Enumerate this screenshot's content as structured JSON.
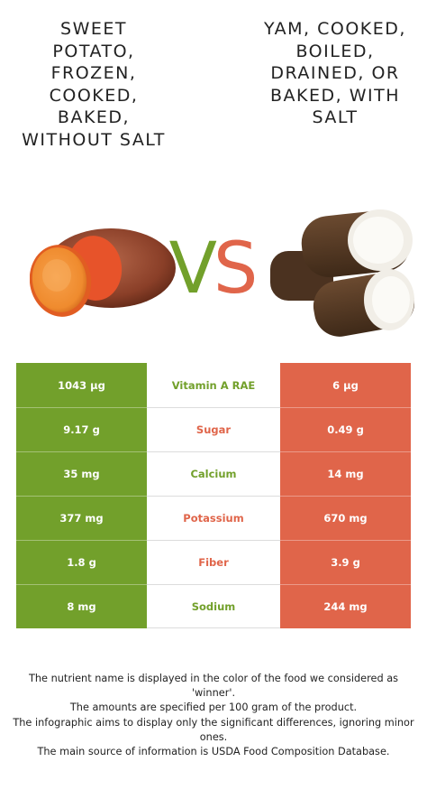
{
  "left_food": {
    "title": "SWEET POTATO, FROZEN, COOKED, BAKED, WITHOUT SALT",
    "image_icon": "sweet-potato-image",
    "color": "#72a02b"
  },
  "right_food": {
    "title": "YAM, COOKED, BOILED, DRAINED, OR BAKED, WITH SALT",
    "image_icon": "yam-image",
    "color": "#e0654a"
  },
  "vs": {
    "v": "V",
    "s": "S"
  },
  "rows": [
    {
      "left": "1043 µg",
      "nutrient": "Vitamin A RAE",
      "right": "6 µg",
      "winner": "left"
    },
    {
      "left": "9.17 g",
      "nutrient": "Sugar",
      "right": "0.49 g",
      "winner": "right"
    },
    {
      "left": "35 mg",
      "nutrient": "Calcium",
      "right": "14 mg",
      "winner": "left"
    },
    {
      "left": "377 mg",
      "nutrient": "Potassium",
      "right": "670 mg",
      "winner": "right"
    },
    {
      "left": "1.8 g",
      "nutrient": "Fiber",
      "right": "3.9 g",
      "winner": "right"
    },
    {
      "left": "8 mg",
      "nutrient": "Sodium",
      "right": "244 mg",
      "winner": "left"
    }
  ],
  "footnote": {
    "line1": "The nutrient name is displayed in the color of the food we considered as 'winner'.",
    "line2": "The amounts are specified per 100 gram of the product.",
    "line3": "The infographic aims to display only the significant differences, ignoring minor ones.",
    "line4": "The main source of information is USDA Food Composition Database."
  }
}
